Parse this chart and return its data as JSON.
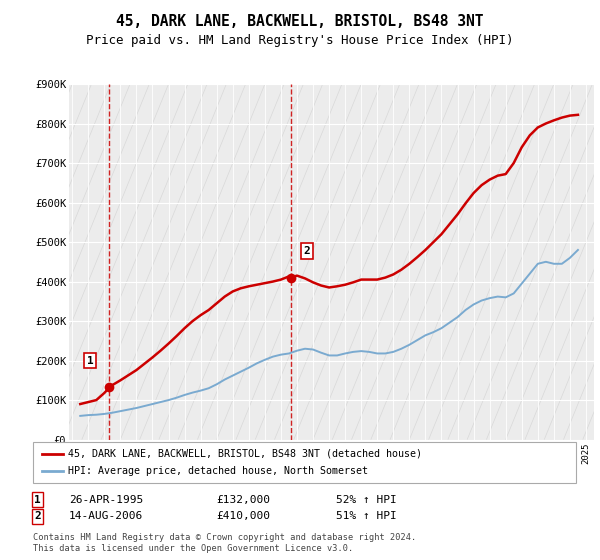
{
  "title": "45, DARK LANE, BACKWELL, BRISTOL, BS48 3NT",
  "subtitle": "Price paid vs. HM Land Registry's House Price Index (HPI)",
  "ylim": [
    0,
    900000
  ],
  "yticks": [
    0,
    100000,
    200000,
    300000,
    400000,
    500000,
    600000,
    700000,
    800000,
    900000
  ],
  "ytick_labels": [
    "£0",
    "£100K",
    "£200K",
    "£300K",
    "£400K",
    "£500K",
    "£600K",
    "£700K",
    "£800K",
    "£900K"
  ],
  "background_color": "#ffffff",
  "plot_bg_color": "#ececec",
  "grid_color": "#ffffff",
  "sale_color": "#cc0000",
  "hpi_color": "#7aaad0",
  "purchase1_x": 1995.32,
  "purchase1_y": 132000,
  "purchase2_x": 2006.62,
  "purchase2_y": 410000,
  "legend_sale_label": "45, DARK LANE, BACKWELL, BRISTOL, BS48 3NT (detached house)",
  "legend_hpi_label": "HPI: Average price, detached house, North Somerset",
  "annotation1_label": "1",
  "annotation2_label": "2",
  "table_row1": [
    "1",
    "26-APR-1995",
    "£132,000",
    "52% ↑ HPI"
  ],
  "table_row2": [
    "2",
    "14-AUG-2006",
    "£410,000",
    "51% ↑ HPI"
  ],
  "footer": "Contains HM Land Registry data © Crown copyright and database right 2024.\nThis data is licensed under the Open Government Licence v3.0.",
  "title_fontsize": 10.5,
  "subtitle_fontsize": 9,
  "tick_fontsize": 7.5,
  "xlim_start": 1993,
  "xlim_end": 2025.5,
  "hpi_x": [
    1993.5,
    1994.0,
    1994.5,
    1995.0,
    1995.5,
    1996.0,
    1996.5,
    1997.0,
    1997.5,
    1998.0,
    1998.5,
    1999.0,
    1999.5,
    2000.0,
    2000.5,
    2001.0,
    2001.5,
    2002.0,
    2002.5,
    2003.0,
    2003.5,
    2004.0,
    2004.5,
    2005.0,
    2005.5,
    2006.0,
    2006.5,
    2007.0,
    2007.5,
    2008.0,
    2008.5,
    2009.0,
    2009.5,
    2010.0,
    2010.5,
    2011.0,
    2011.5,
    2012.0,
    2012.5,
    2013.0,
    2013.5,
    2014.0,
    2014.5,
    2015.0,
    2015.5,
    2016.0,
    2016.5,
    2017.0,
    2017.5,
    2018.0,
    2018.5,
    2019.0,
    2019.5,
    2020.0,
    2020.5,
    2021.0,
    2021.5,
    2022.0,
    2022.5,
    2023.0,
    2023.5,
    2024.0,
    2024.5
  ],
  "hpi_y": [
    60000,
    62000,
    63000,
    65000,
    68000,
    72000,
    76000,
    80000,
    85000,
    90000,
    95000,
    100000,
    106000,
    113000,
    119000,
    124000,
    130000,
    140000,
    152000,
    162000,
    172000,
    182000,
    193000,
    202000,
    210000,
    215000,
    218000,
    225000,
    230000,
    228000,
    220000,
    213000,
    213000,
    218000,
    222000,
    224000,
    222000,
    218000,
    218000,
    222000,
    230000,
    240000,
    252000,
    264000,
    272000,
    282000,
    296000,
    310000,
    328000,
    342000,
    352000,
    358000,
    362000,
    360000,
    370000,
    395000,
    420000,
    445000,
    450000,
    445000,
    445000,
    460000,
    480000
  ],
  "sale_x": [
    1993.5,
    1994.0,
    1994.5,
    1995.0,
    1995.32,
    1995.5,
    1996.0,
    1996.5,
    1997.0,
    1997.5,
    1998.0,
    1998.5,
    1999.0,
    1999.5,
    2000.0,
    2000.5,
    2001.0,
    2001.5,
    2002.0,
    2002.5,
    2003.0,
    2003.5,
    2004.0,
    2004.5,
    2005.0,
    2005.5,
    2006.0,
    2006.5,
    2006.62,
    2007.0,
    2007.5,
    2008.0,
    2008.5,
    2009.0,
    2009.5,
    2010.0,
    2010.5,
    2011.0,
    2011.5,
    2012.0,
    2012.5,
    2013.0,
    2013.5,
    2014.0,
    2014.5,
    2015.0,
    2015.5,
    2016.0,
    2016.5,
    2017.0,
    2017.5,
    2018.0,
    2018.5,
    2019.0,
    2019.5,
    2020.0,
    2020.5,
    2021.0,
    2021.5,
    2022.0,
    2022.5,
    2023.0,
    2023.5,
    2024.0,
    2024.5
  ],
  "sale_y": [
    90000,
    95000,
    100000,
    118000,
    132000,
    138000,
    150000,
    163000,
    176000,
    192000,
    208000,
    225000,
    243000,
    262000,
    282000,
    300000,
    315000,
    328000,
    345000,
    362000,
    375000,
    383000,
    388000,
    392000,
    396000,
    400000,
    405000,
    413000,
    410000,
    415000,
    408000,
    398000,
    390000,
    385000,
    388000,
    392000,
    398000,
    405000,
    405000,
    405000,
    410000,
    418000,
    430000,
    445000,
    462000,
    480000,
    500000,
    520000,
    545000,
    570000,
    598000,
    624000,
    644000,
    658000,
    668000,
    672000,
    700000,
    740000,
    770000,
    790000,
    800000,
    808000,
    815000,
    820000,
    822000
  ]
}
